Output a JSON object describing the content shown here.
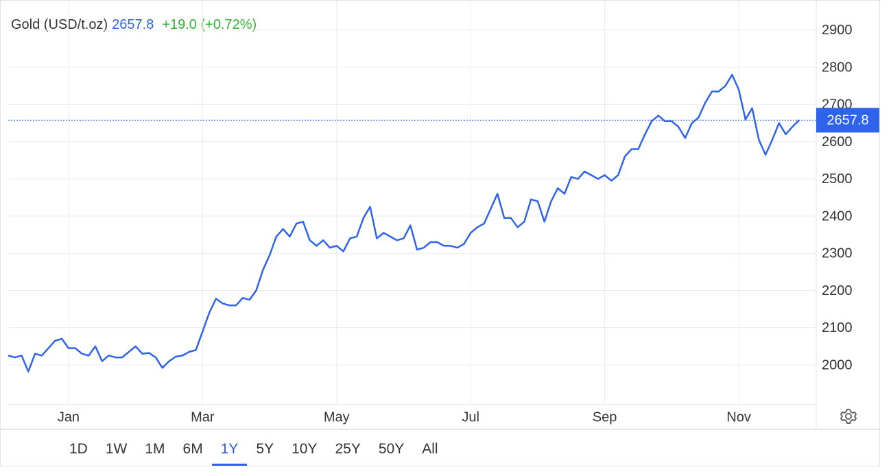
{
  "chart_data": {
    "type": "line",
    "instrument": "Gold (USD/t.oz)",
    "last_price": 2657.8,
    "last_price_label": "2657.8",
    "change": "+19.0 (+0.72%)",
    "categories": [
      null,
      null,
      null,
      null,
      null,
      null,
      null,
      null,
      null,
      "Jan",
      null,
      null,
      null,
      null,
      null,
      null,
      null,
      null,
      null,
      null,
      null,
      null,
      null,
      null,
      null,
      null,
      null,
      null,
      null,
      "Mar",
      null,
      null,
      null,
      null,
      null,
      null,
      null,
      null,
      null,
      null,
      null,
      null,
      null,
      null,
      null,
      null,
      null,
      null,
      null,
      "May",
      null,
      null,
      null,
      null,
      null,
      null,
      null,
      null,
      null,
      null,
      null,
      null,
      null,
      null,
      null,
      null,
      null,
      null,
      null,
      "Jul",
      null,
      null,
      null,
      null,
      null,
      null,
      null,
      null,
      null,
      null,
      null,
      null,
      null,
      null,
      null,
      null,
      null,
      null,
      null,
      "Sep",
      null,
      null,
      null,
      null,
      null,
      null,
      null,
      null,
      null,
      null,
      null,
      null,
      null,
      null,
      null,
      null,
      null,
      null,
      null,
      "Nov",
      null,
      null,
      null,
      null,
      null,
      null,
      null,
      null,
      null
    ],
    "series": [
      {
        "name": "Gold (USD/t.oz)",
        "color": "#2e63eb",
        "values": [
          2025,
          2020,
          2025,
          1982,
          2030,
          2025,
          2045,
          2065,
          2070,
          2045,
          2045,
          2030,
          2025,
          2050,
          2010,
          2025,
          2020,
          2020,
          2035,
          2050,
          2030,
          2032,
          2020,
          1992,
          2010,
          2022,
          2025,
          2035,
          2040,
          2090,
          2140,
          2178,
          2165,
          2160,
          2160,
          2180,
          2175,
          2200,
          2255,
          2295,
          2345,
          2365,
          2345,
          2380,
          2385,
          2335,
          2320,
          2335,
          2315,
          2320,
          2305,
          2340,
          2345,
          2395,
          2425,
          2340,
          2355,
          2345,
          2335,
          2340,
          2375,
          2310,
          2315,
          2330,
          2330,
          2320,
          2320,
          2315,
          2325,
          2355,
          2370,
          2380,
          2420,
          2460,
          2395,
          2395,
          2370,
          2385,
          2445,
          2440,
          2385,
          2440,
          2475,
          2460,
          2505,
          2500,
          2520,
          2510,
          2500,
          2510,
          2495,
          2510,
          2560,
          2580,
          2580,
          2620,
          2655,
          2670,
          2655,
          2655,
          2640,
          2610,
          2650,
          2665,
          2705,
          2735,
          2735,
          2750,
          2780,
          2740,
          2660,
          2690,
          2605,
          2565,
          2605,
          2650,
          2620,
          2640,
          2658
        ]
      }
    ],
    "ylim": [
      1893,
      2981
    ],
    "yticks": [
      2000,
      2100,
      2200,
      2300,
      2400,
      2500,
      2600,
      2700,
      2800,
      2900
    ],
    "grid": true,
    "ranges": [
      "1D",
      "1W",
      "1M",
      "6M",
      "1Y",
      "5Y",
      "10Y",
      "25Y",
      "50Y",
      "All"
    ],
    "selected_range": "1Y"
  }
}
